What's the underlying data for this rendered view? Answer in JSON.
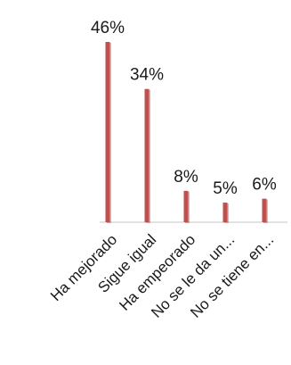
{
  "chart_data": {
    "type": "bar",
    "title": "",
    "xlabel": "",
    "ylabel": "",
    "categories": [
      "Ha mejorado",
      "Sigue igual",
      "Ha empeorado",
      "No se le da un...",
      "No se tiene en..."
    ],
    "values": [
      46,
      34,
      8,
      5,
      6
    ],
    "data_labels": [
      "46%",
      "34%",
      "8%",
      "5%",
      "6%"
    ],
    "ylim": [
      0,
      46
    ],
    "grid": false,
    "legend": "none",
    "bar_color": "#c0504d",
    "bar_shadow_color": "#8a3230",
    "axis_color": "#d9d9d9"
  }
}
